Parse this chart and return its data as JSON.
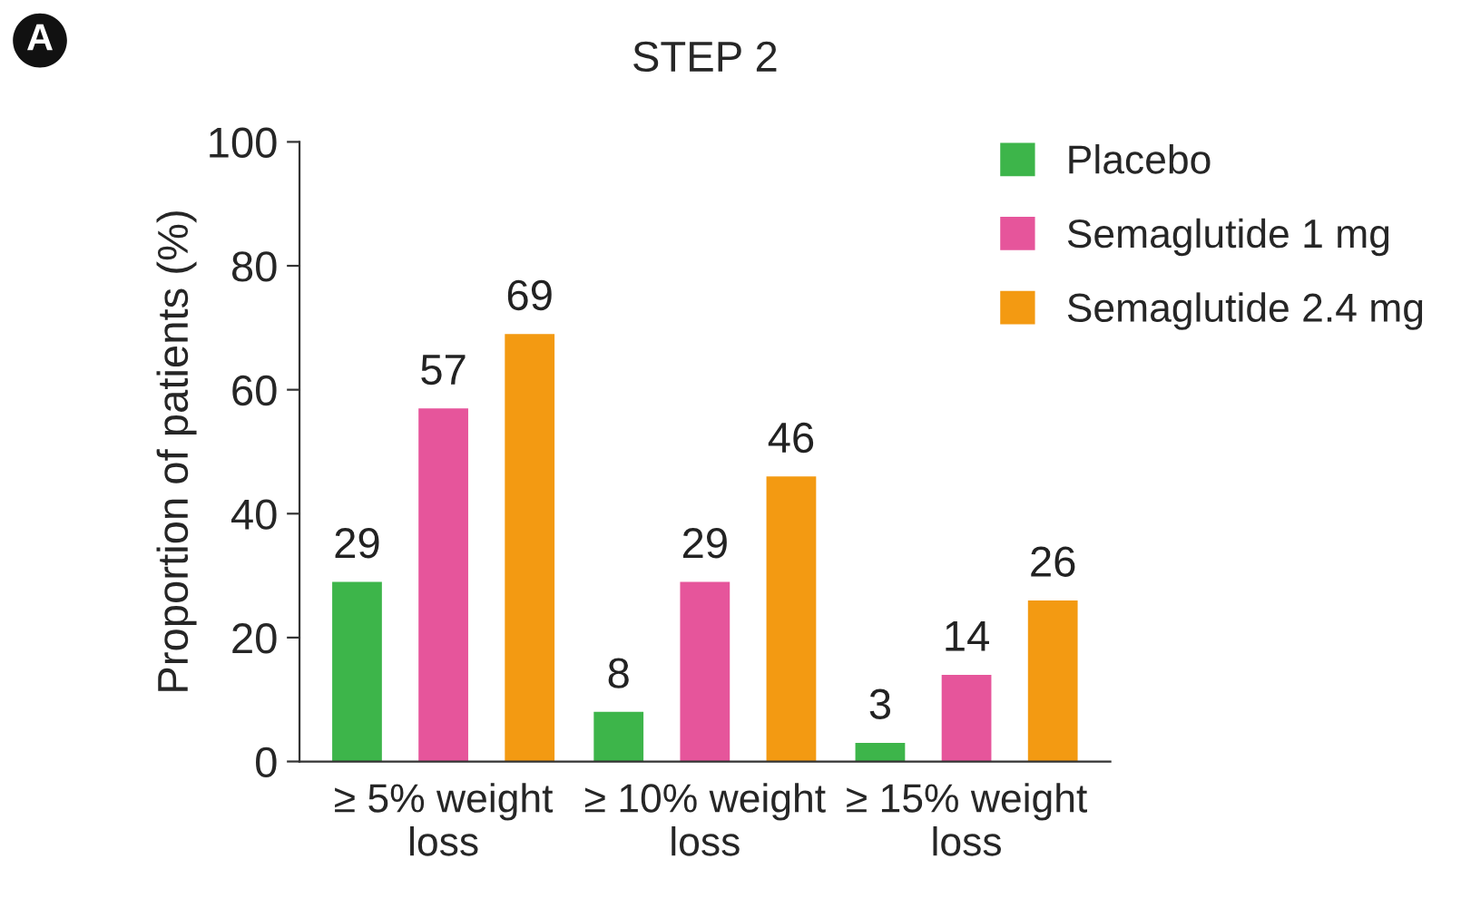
{
  "chart_data": {
    "type": "bar",
    "title": "STEP 2",
    "ylabel": "Proportion of patients (%)",
    "categories": [
      "≥ 5% weight\nloss",
      "≥ 10% weight\nloss",
      "≥ 15% weight\nloss"
    ],
    "series": [
      {
        "name": "Placebo",
        "color": "#3db54a",
        "values": [
          29,
          8,
          3
        ]
      },
      {
        "name": "Semaglutide 1 mg",
        "color": "#e6559b",
        "values": [
          57,
          29,
          14
        ]
      },
      {
        "name": "Semaglutide 2.4 mg",
        "color": "#f39a12",
        "values": [
          69,
          46,
          26
        ]
      }
    ],
    "ylim": [
      0,
      100
    ],
    "yticks": [
      0,
      20,
      40,
      60,
      80,
      100
    ],
    "grid": false,
    "legend": "top right",
    "data_labels": true,
    "annotations": [
      "A"
    ]
  }
}
